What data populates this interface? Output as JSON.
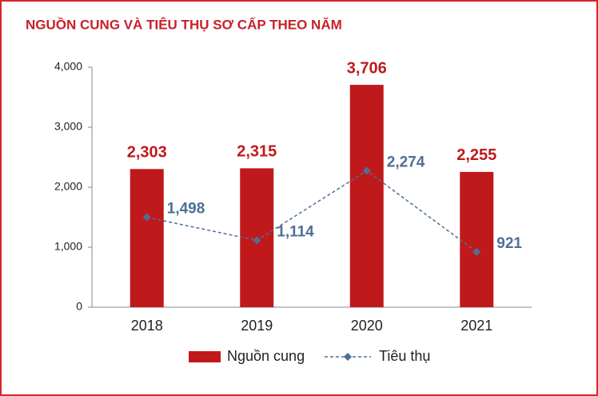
{
  "chart_data": {
    "type": "bar",
    "title": "NGUỒN CUNG VÀ TIÊU THỤ SƠ CẤP THEO NĂM",
    "categories": [
      "2018",
      "2019",
      "2020",
      "2021"
    ],
    "series": [
      {
        "name": "Nguồn cung",
        "type": "bar",
        "color": "#c0191c",
        "values": [
          2303,
          2315,
          3706,
          2255
        ],
        "value_labels": [
          "2,303",
          "2,315",
          "3,706",
          "2,255"
        ]
      },
      {
        "name": "Tiêu thụ",
        "type": "line",
        "color": "#4f6f97",
        "values": [
          1498,
          1114,
          2274,
          921
        ],
        "value_labels": [
          "1,498",
          "1,114",
          "2,274",
          "921"
        ]
      }
    ],
    "ylim": [
      0,
      4000
    ],
    "yticks": [
      0,
      {
        "value": 1000,
        "label": "1,000"
      },
      {
        "value": 2000,
        "label": "2,000"
      },
      {
        "value": 3000,
        "label": "3,000"
      },
      {
        "value": 4000,
        "label": "4,000"
      }
    ],
    "legend": "bottom"
  }
}
